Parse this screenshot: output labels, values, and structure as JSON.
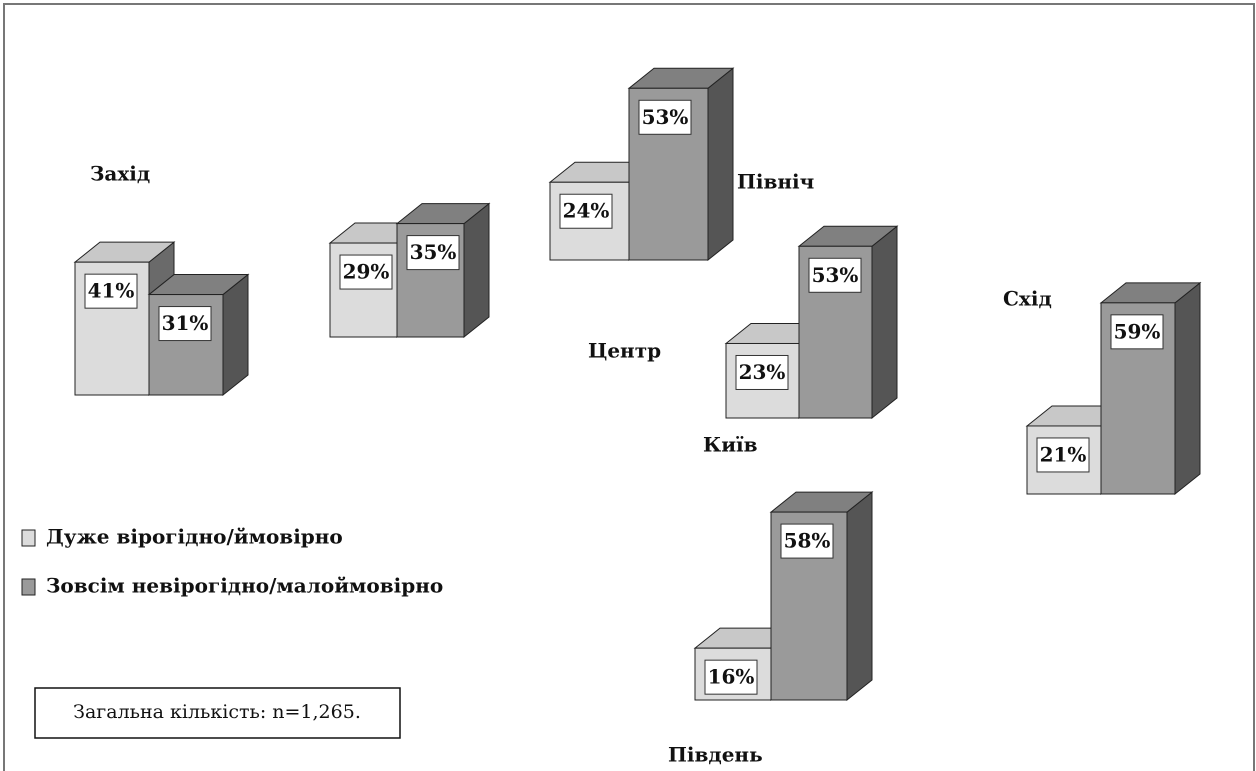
{
  "chart_data": {
    "type": "bar",
    "categories": [
      "Захід",
      "Центр",
      "Північ",
      "Київ",
      "Схід",
      "Південь"
    ],
    "series": [
      {
        "name": "Дуже вірогідно/ймовірно",
        "color": "#dcdcdc",
        "values": [
          41,
          29,
          24,
          23,
          21,
          16
        ],
        "value_labels": [
          "41%",
          "29%",
          "24%",
          "23%",
          "21%",
          "16%"
        ]
      },
      {
        "name": "Зовсім невірогідно/малоймовірно",
        "color": "#9a9a9a",
        "values": [
          31,
          35,
          53,
          53,
          59,
          58
        ],
        "value_labels": [
          "31%",
          "35%",
          "53%",
          "53%",
          "59%",
          "58%"
        ]
      }
    ],
    "note": "Загальна кількість: n=1,265."
  }
}
